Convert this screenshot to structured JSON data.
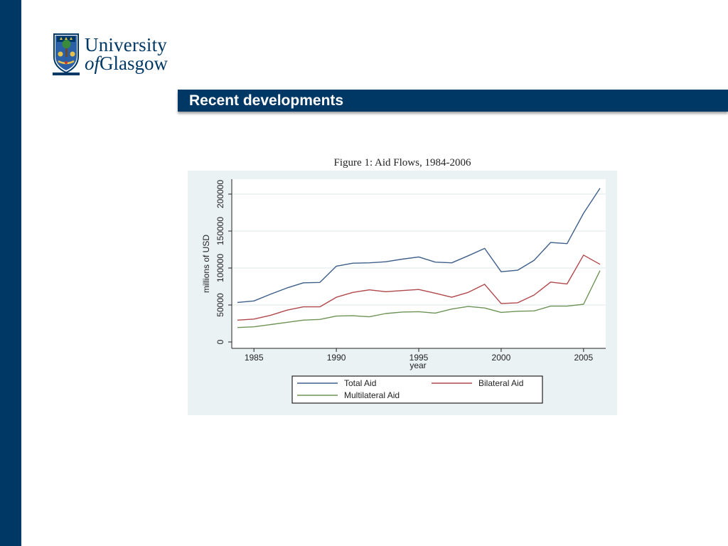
{
  "slide": {
    "title": "Recent developments"
  },
  "logo": {
    "line1": "University",
    "line2_of": "of",
    "line2_rest": "Glasgow",
    "motto": "VIA VERITAS VITA"
  },
  "colors": {
    "brand_navy": "#003865",
    "plot_bg": "#eaf2f3",
    "total": "#3e5f8a",
    "bilateral": "#b0484b",
    "multilateral": "#6d9456"
  },
  "chart_data": {
    "type": "line",
    "title": "Figure 1: Aid Flows, 1984-2006",
    "xlabel": "year",
    "ylabel": "millions of USD",
    "xlim": [
      1984,
      2006
    ],
    "ylim": [
      0,
      200000
    ],
    "xticks": [
      1985,
      1990,
      1995,
      2000,
      2005
    ],
    "yticks": [
      0,
      50000,
      100000,
      150000,
      200000
    ],
    "grid": true,
    "legend_position": "bottom",
    "x": [
      1984,
      1985,
      1986,
      1987,
      1988,
      1989,
      1990,
      1991,
      1992,
      1993,
      1994,
      1995,
      1996,
      1997,
      1998,
      1999,
      2000,
      2001,
      2002,
      2003,
      2004,
      2005,
      2006
    ],
    "series": [
      {
        "name": "Total Aid",
        "values": [
          53500,
          55500,
          64500,
          73000,
          80000,
          80500,
          102500,
          106500,
          107000,
          108500,
          112000,
          115000,
          108000,
          107000,
          116500,
          126500,
          95000,
          97000,
          110500,
          134500,
          133000,
          174000,
          208000
        ]
      },
      {
        "name": "Bilateral Aid",
        "values": [
          29500,
          31000,
          36000,
          43000,
          47500,
          47500,
          60500,
          67000,
          70500,
          68000,
          69500,
          71000,
          66000,
          60500,
          67000,
          78000,
          52000,
          53000,
          63500,
          81000,
          78500,
          117500,
          105000
        ]
      },
      {
        "name": "Multilateral Aid",
        "values": [
          19500,
          20500,
          23500,
          26500,
          29500,
          30500,
          35000,
          35500,
          34000,
          38500,
          40500,
          41000,
          39000,
          44500,
          48000,
          46000,
          40000,
          41500,
          42000,
          48500,
          48500,
          51000,
          96500
        ]
      }
    ]
  }
}
